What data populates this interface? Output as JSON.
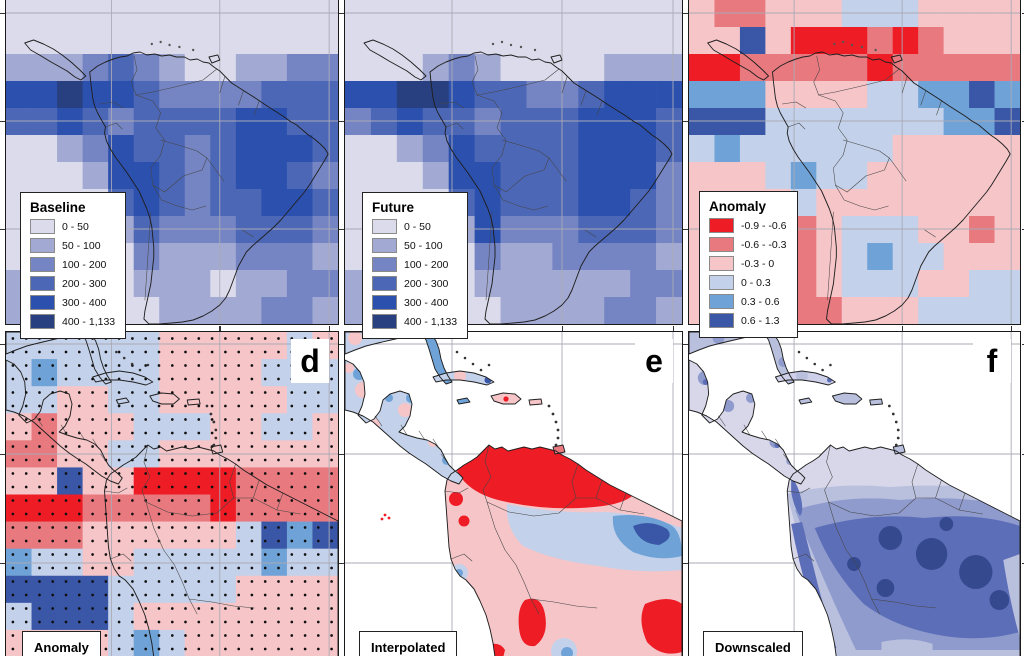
{
  "palettes": {
    "precip": [
      "#dcdbec",
      "#a2a9d2",
      "#7585c4",
      "#4d67b7",
      "#2b50ae",
      "#283f80"
    ],
    "anomaly": [
      "#ee1c25",
      "#e8797f",
      "#f6c5c8",
      "#c3d1ea",
      "#6fa2d7",
      "#3a56a6"
    ]
  },
  "map_colors": {
    "ocean": "#ffffff",
    "coastline": "#1f1f1f",
    "border_line": "#454545",
    "graticule": "#a9aab5",
    "dot": "#101010",
    "downscaled_shades": [
      "#d8d7ea",
      "#b9c0de",
      "#8f9bcd",
      "#5d6eb8",
      "#35498f",
      "#cdd0e8"
    ]
  },
  "panels": {
    "baseline": {
      "legend_title": "Baseline",
      "legend_items": [
        "0 - 50",
        "50 - 100",
        "100 - 200",
        "200 - 300",
        "300 - 400",
        "400 - 1,133"
      ],
      "palette": "precip",
      "grid": [
        "0000000000000",
        "0000000000000",
        "1112321001122",
        "4454432222333",
        "3343233334433",
        "0012433234443",
        "0001443234432",
        "0000343233443",
        "0000132223332",
        "0000021112221",
        "1000011101122",
        "1100001111221"
      ]
    },
    "future": {
      "legend_title": "Future",
      "legend_items": [
        "0 - 50",
        "50 - 100",
        "100 - 200",
        "200 - 300",
        "300 - 400",
        "400 - 1,133"
      ],
      "palette": "precip",
      "grid": [
        "0000000000000",
        "0000000000000",
        "0001210000111",
        "4455433223444",
        "2343323334443",
        "0012433334443",
        "0001443334442",
        "0000343334432",
        "0000142223332",
        "0000021122221",
        "1000011111122",
        "1100001111221"
      ]
    },
    "anomaly_map": {
      "legend_title": "Anomaly",
      "legend_items": [
        "-0.9 - -0.6",
        "-0.6 - -0.3",
        "-0.3 - 0",
        "0 - 0.3",
        "0.3 - 0.6",
        "0.6 - 1.3"
      ],
      "palette": "anomaly",
      "grid": [
        "2112223332222",
        "2252000101222",
        "0011111011111",
        "4442222334454",
        "5553333333445",
        "3433333322222",
        "2223433222222",
        "2222322222222",
        "2222123332212",
        "2222123433222",
        "2221123332233",
        "2111112223333"
      ]
    },
    "anomaly_points": {
      "corner_label": "d",
      "bottom_label": "Anomaly",
      "palette": "anomaly",
      "grid": [
        "3333332222232",
        "3433332222333",
        "3322332222233",
        "2122233322332",
        "1122332222222",
        "2252200001111",
        "0001111101111",
        "1112222223545",
        "4332233333433",
        "5555333332222",
        "3555322222222",
        "2222343222222"
      ]
    },
    "interpolated": {
      "corner_label": "e",
      "bottom_label": "Interpolated"
    },
    "downscaled": {
      "corner_label": "f",
      "bottom_label": "Downscaled"
    }
  }
}
